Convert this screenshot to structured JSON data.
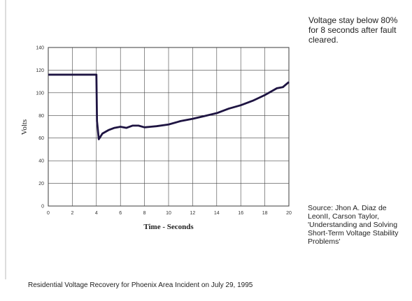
{
  "chart_data": {
    "type": "line",
    "x_label": "Time - Seconds",
    "y_label": "Volts",
    "x": [
      0,
      4,
      4.05,
      4.2,
      4.5,
      5,
      5.5,
      6,
      6.5,
      7,
      7.5,
      8,
      8.5,
      9,
      10,
      11,
      12,
      13,
      14,
      15,
      16,
      17,
      18,
      19,
      19.5,
      20
    ],
    "series": [
      {
        "color": "#1e1442",
        "values": [
          116,
          116,
          75,
          59,
          64,
          67,
          69,
          70,
          69,
          71,
          71,
          69.5,
          70,
          70.5,
          72,
          75,
          77,
          79.5,
          82,
          86,
          89,
          93,
          98,
          104,
          105,
          109.5
        ]
      }
    ],
    "xlim": [
      0,
      20
    ],
    "xticks": [
      0,
      2,
      4,
      6,
      8,
      10,
      12,
      14,
      16,
      18,
      20
    ],
    "ylim": [
      0,
      140
    ],
    "yticks": [
      0,
      20,
      40,
      60,
      80,
      100,
      120,
      140
    ],
    "grid": true,
    "annotation": "Voltage stay below 80% for 8 seconds after fault cleared.",
    "source": "Source: Jhon A. Diaz de LeonII, Carson Taylor, 'Understanding and Solving Short-Term Voltage Stability Problems'",
    "caption": "Residential Voltage Recovery for Phoenix Area Incident on July 29, 1995"
  }
}
